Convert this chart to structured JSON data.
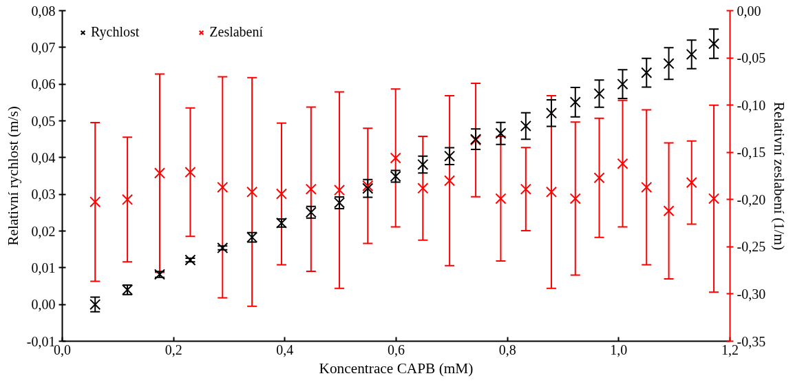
{
  "chart_data": {
    "type": "scatter",
    "xlabel": "Koncentrace CAPB (mM)",
    "ylabel": "Relativní rychlost (m/s)",
    "y2label": "Relativní zeslabení (1/m)",
    "x": [
      0.059,
      0.117,
      0.175,
      0.23,
      0.288,
      0.341,
      0.394,
      0.447,
      0.498,
      0.549,
      0.599,
      0.648,
      0.696,
      0.743,
      0.788,
      0.833,
      0.879,
      0.922,
      0.965,
      1.007,
      1.05,
      1.09,
      1.131,
      1.171
    ],
    "series": [
      {
        "name": "Rychlost",
        "color": "#000000",
        "values": [
          0.0,
          0.004,
          0.0082,
          0.0121,
          0.0154,
          0.0183,
          0.0222,
          0.0251,
          0.0277,
          0.0316,
          0.0349,
          0.0381,
          0.0404,
          0.045,
          0.0466,
          0.0486,
          0.0521,
          0.0551,
          0.0574,
          0.06,
          0.0631,
          0.0656,
          0.0681,
          0.071
        ],
        "errors": [
          0.002,
          0.0013,
          0.0008,
          0.0005,
          0.0005,
          0.0013,
          0.0011,
          0.0016,
          0.0016,
          0.0024,
          0.0016,
          0.0023,
          0.0023,
          0.0028,
          0.003,
          0.0036,
          0.0036,
          0.004,
          0.0037,
          0.0039,
          0.0039,
          0.0043,
          0.0039,
          0.004
        ]
      },
      {
        "name": "Zeslabení",
        "color": "#ff0000",
        "axis": "y2",
        "values": [
          -0.2025,
          -0.2,
          -0.172,
          -0.171,
          -0.187,
          -0.192,
          -0.194,
          -0.189,
          -0.19,
          -0.1855,
          -0.156,
          -0.188,
          -0.18,
          -0.137,
          -0.199,
          -0.189,
          -0.192,
          -0.199,
          -0.177,
          -0.162,
          -0.187,
          -0.212,
          -0.182,
          -0.199
        ],
        "errors": [
          0.084,
          0.066,
          0.105,
          0.068,
          0.117,
          0.121,
          0.075,
          0.087,
          0.104,
          0.061,
          0.073,
          0.055,
          0.09,
          0.06,
          0.066,
          0.044,
          0.102,
          0.081,
          0.063,
          0.067,
          0.082,
          0.072,
          0.044,
          0.099
        ]
      }
    ],
    "xlim": [
      0,
      1.2
    ],
    "xticks": [
      {
        "value": 0,
        "label": "0,0"
      },
      {
        "value": 0.2,
        "label": "0,2"
      },
      {
        "value": 0.4,
        "label": "0,4"
      },
      {
        "value": 0.6,
        "label": "0,6"
      },
      {
        "value": 0.8,
        "label": "0,8"
      },
      {
        "value": 1.0,
        "label": "1,0"
      },
      {
        "value": 1.2,
        "label": "1,2"
      }
    ],
    "ylim": [
      -0.01,
      0.08
    ],
    "yticks": [
      {
        "value": -0.01,
        "label": "-0,01"
      },
      {
        "value": 0,
        "label": "0,00"
      },
      {
        "value": 0.01,
        "label": "0,01"
      },
      {
        "value": 0.02,
        "label": "0,02"
      },
      {
        "value": 0.03,
        "label": "0,03"
      },
      {
        "value": 0.04,
        "label": "0,04"
      },
      {
        "value": 0.05,
        "label": "0,05"
      },
      {
        "value": 0.06,
        "label": "0,06"
      },
      {
        "value": 0.07,
        "label": "0,07"
      },
      {
        "value": 0.08,
        "label": "0,08"
      }
    ],
    "y2lim": [
      -0.35,
      0
    ],
    "y2ticks": [
      {
        "value": -0.35,
        "label": "-0,35"
      },
      {
        "value": -0.3,
        "label": "-0,30"
      },
      {
        "value": -0.25,
        "label": "-0,25"
      },
      {
        "value": -0.2,
        "label": "-0,20"
      },
      {
        "value": -0.15,
        "label": "-0,15"
      },
      {
        "value": -0.1,
        "label": "-0,10"
      },
      {
        "value": -0.05,
        "label": "-0,05"
      },
      {
        "value": 0,
        "label": "0,00"
      }
    ],
    "grid": false,
    "legend": "top left",
    "marker": "cross"
  }
}
